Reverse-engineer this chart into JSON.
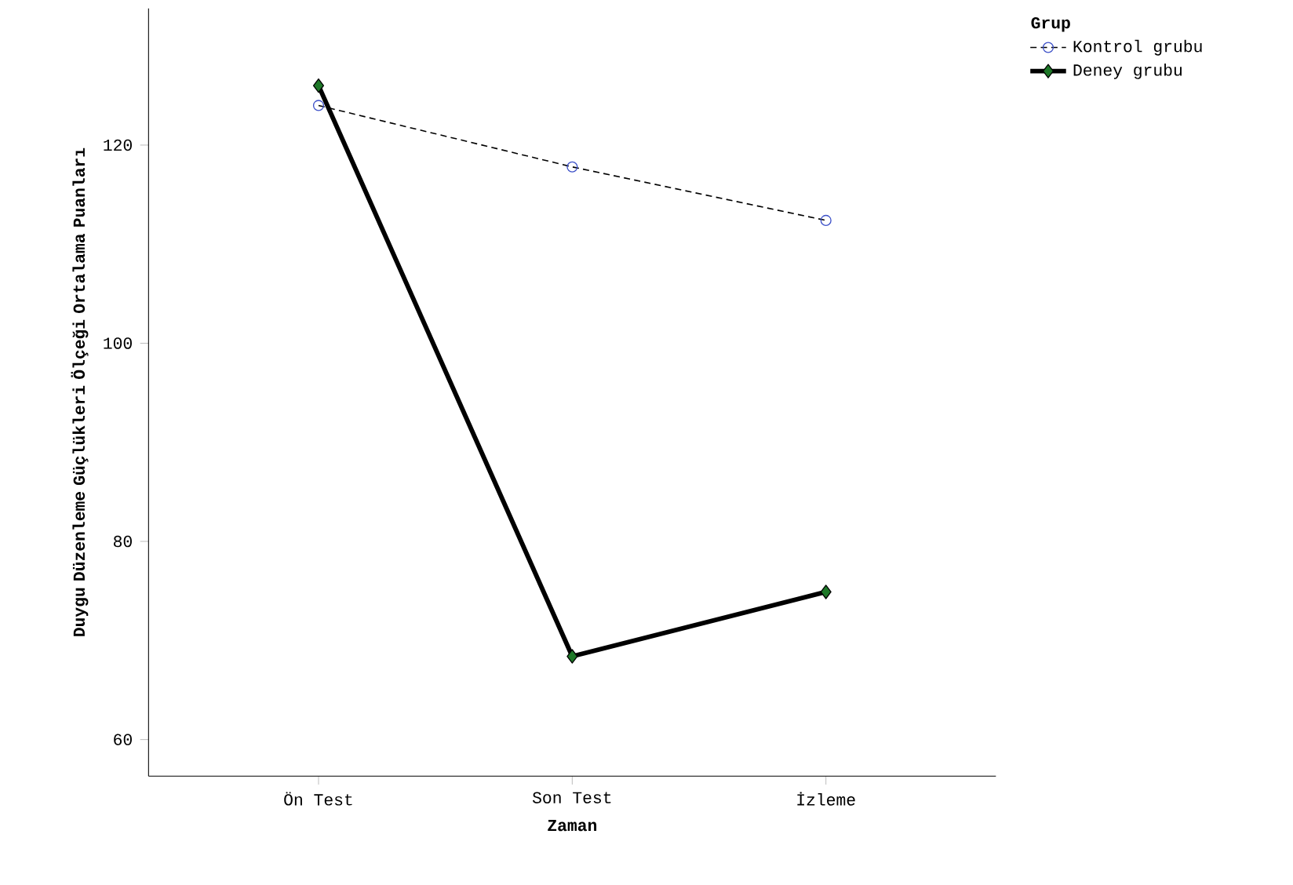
{
  "chart_data": {
    "type": "line",
    "xlabel": "Zaman",
    "ylabel": "Duygu Düzenleme Güçlükleri Ölçeği Ortalama Puanları",
    "legend_title": "Grup",
    "legend": "top right",
    "categories": [
      "Ön Test",
      "Son Test",
      "İzleme"
    ],
    "ylim": [
      56.3,
      133.8
    ],
    "yticks": [
      60,
      80,
      100,
      120
    ],
    "grid": false,
    "series": [
      {
        "name": "Kontrol grubu",
        "color": "#000000",
        "values": [
          124.0,
          117.8,
          112.4
        ],
        "line_style": "dotted",
        "marker": "circle"
      },
      {
        "name": "Deney grubu",
        "color": "#000000",
        "values": [
          126.0,
          68.4,
          74.9
        ],
        "line_style": "solid",
        "marker": "diamond"
      }
    ]
  }
}
